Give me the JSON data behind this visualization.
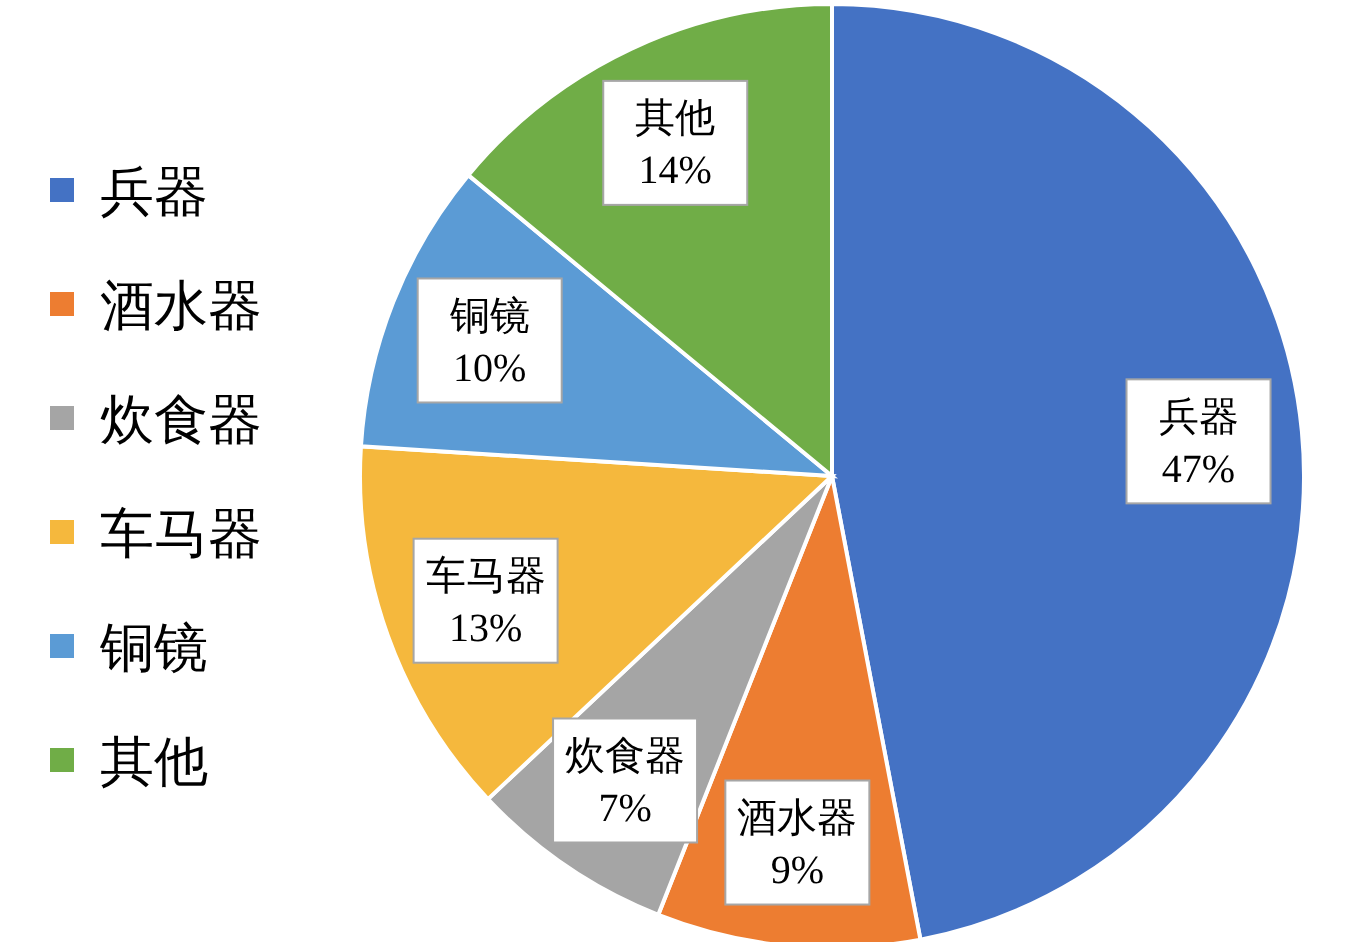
{
  "chart_data": {
    "type": "pie",
    "categories": [
      "兵器",
      "酒水器",
      "炊食器",
      "车马器",
      "铜镜",
      "其他"
    ],
    "values": [
      47,
      9,
      7,
      13,
      10,
      14
    ],
    "value_labels": [
      "47%",
      "9%",
      "7%",
      "13%",
      "10%",
      "14%"
    ],
    "colors": [
      "#4472c4",
      "#ed7d31",
      "#a5a5a5",
      "#f5b83d",
      "#5b9bd5",
      "#70ad47"
    ],
    "legend": "left"
  }
}
